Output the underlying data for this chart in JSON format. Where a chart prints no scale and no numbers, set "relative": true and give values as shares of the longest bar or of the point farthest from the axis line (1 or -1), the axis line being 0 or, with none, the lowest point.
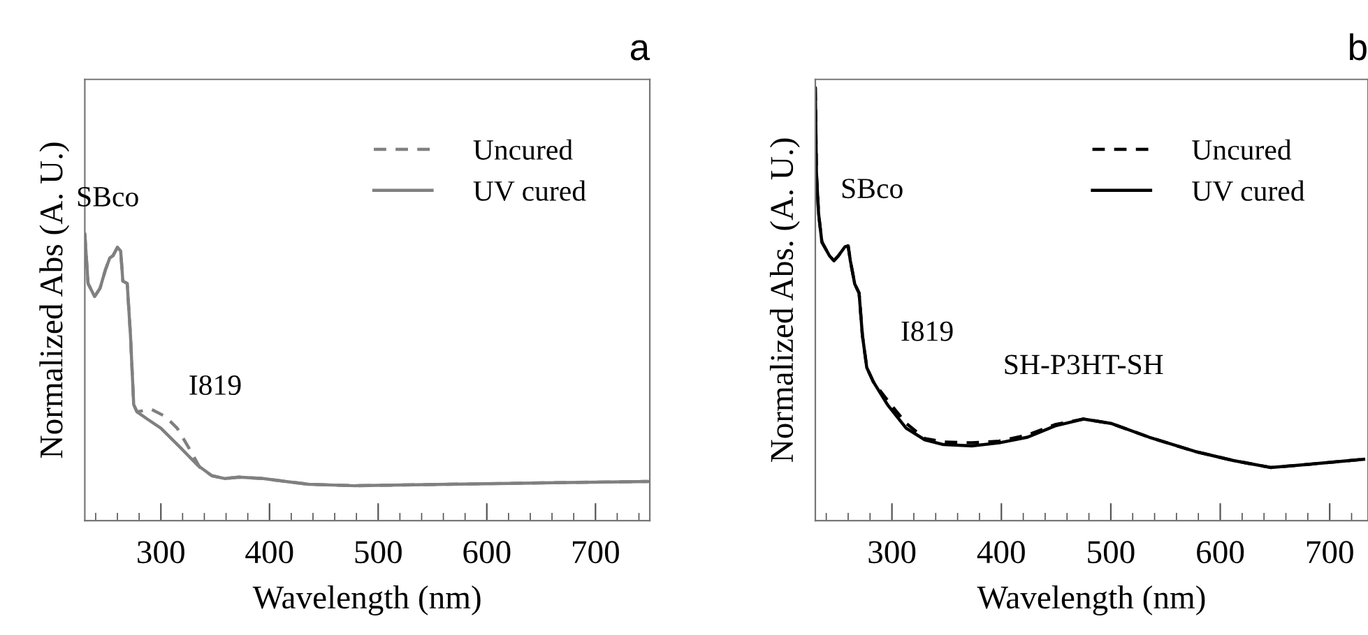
{
  "chart_data": [
    {
      "type": "line",
      "title": "a",
      "xlabel": "Wavelength (nm)",
      "ylabel": "Normalized Abs (A. U.)",
      "relative": true,
      "xlim": [
        230,
        750
      ],
      "xticks": [
        300,
        400,
        500,
        600,
        700
      ],
      "tick_labels": "x",
      "legend": "top right",
      "grid": false,
      "series": [
        {
          "name": "Uncured",
          "color": "#808080",
          "line_style": "dashed",
          "x": [
            230,
            233,
            239,
            244,
            249,
            253,
            256,
            260,
            263,
            265,
            269,
            272,
            275,
            278,
            291,
            304,
            315,
            325,
            336,
            347,
            359,
            372,
            394,
            415,
            436,
            479,
            565,
            650,
            748
          ],
          "values": [
            1.0,
            0.828,
            0.782,
            0.811,
            0.876,
            0.917,
            0.925,
            0.954,
            0.941,
            0.836,
            0.828,
            0.649,
            0.405,
            0.38,
            0.389,
            0.364,
            0.323,
            0.259,
            0.185,
            0.157,
            0.147,
            0.152,
            0.147,
            0.137,
            0.127,
            0.122,
            0.127,
            0.132,
            0.137
          ]
        },
        {
          "name": "UV cured",
          "color": "#808080",
          "line_style": "solid",
          "x": [
            230,
            233,
            239,
            244,
            249,
            253,
            256,
            260,
            263,
            265,
            269,
            272,
            275,
            278,
            287,
            300,
            317,
            334,
            347,
            359,
            372,
            394,
            415,
            436,
            479,
            565,
            650,
            748
          ],
          "values": [
            1.0,
            0.828,
            0.782,
            0.811,
            0.876,
            0.917,
            0.925,
            0.954,
            0.941,
            0.836,
            0.828,
            0.649,
            0.405,
            0.38,
            0.356,
            0.323,
            0.259,
            0.193,
            0.157,
            0.147,
            0.152,
            0.147,
            0.137,
            0.127,
            0.122,
            0.127,
            0.132,
            0.137
          ]
        }
      ],
      "annotations": [
        {
          "text": "SBco",
          "x": 260,
          "y": 0.954
        },
        {
          "text": "I819",
          "x": 304,
          "y": 0.364
        }
      ]
    },
    {
      "type": "line",
      "title": "b",
      "xlabel": "Wavelength (nm)",
      "ylabel": "Normalized Abs. (A. U.)",
      "relative": true,
      "xlim": [
        230,
        735
      ],
      "xticks": [
        300,
        400,
        500,
        600,
        700
      ],
      "tick_labels": "x",
      "legend": "top right",
      "grid": false,
      "series": [
        {
          "name": "Uncured",
          "color": "#000000",
          "line_style": "dashed",
          "x": [
            230,
            231,
            233,
            236,
            243,
            247,
            251,
            257,
            260,
            262,
            266,
            270,
            273,
            277,
            283,
            296,
            313,
            330,
            347,
            373,
            398,
            424,
            449,
            475,
            500,
            535,
            577,
            612,
            646,
            671,
            731
          ],
          "values": [
            1.0,
            0.805,
            0.709,
            0.644,
            0.612,
            0.601,
            0.612,
            0.633,
            0.635,
            0.601,
            0.547,
            0.526,
            0.429,
            0.354,
            0.321,
            0.278,
            0.225,
            0.19,
            0.182,
            0.18,
            0.184,
            0.198,
            0.222,
            0.235,
            0.225,
            0.193,
            0.16,
            0.139,
            0.123,
            0.128,
            0.142
          ]
        },
        {
          "name": "UV cured",
          "color": "#000000",
          "line_style": "solid",
          "x": [
            230,
            231,
            233,
            236,
            243,
            247,
            251,
            257,
            260,
            262,
            266,
            270,
            273,
            277,
            283,
            296,
            313,
            330,
            347,
            373,
            398,
            424,
            449,
            475,
            500,
            535,
            577,
            612,
            646,
            671,
            731
          ],
          "values": [
            1.0,
            0.805,
            0.709,
            0.644,
            0.612,
            0.601,
            0.612,
            0.633,
            0.635,
            0.601,
            0.547,
            0.526,
            0.429,
            0.354,
            0.321,
            0.268,
            0.214,
            0.187,
            0.176,
            0.173,
            0.18,
            0.193,
            0.219,
            0.235,
            0.225,
            0.193,
            0.16,
            0.139,
            0.123,
            0.128,
            0.142
          ]
        }
      ],
      "annotations": [
        {
          "text": "SBco",
          "x": 257,
          "y": 0.633
        },
        {
          "text": "I819",
          "x": 283,
          "y": 0.321
        },
        {
          "text": "SH-P3HT-SH",
          "x": 475,
          "y": 0.235
        }
      ]
    }
  ]
}
